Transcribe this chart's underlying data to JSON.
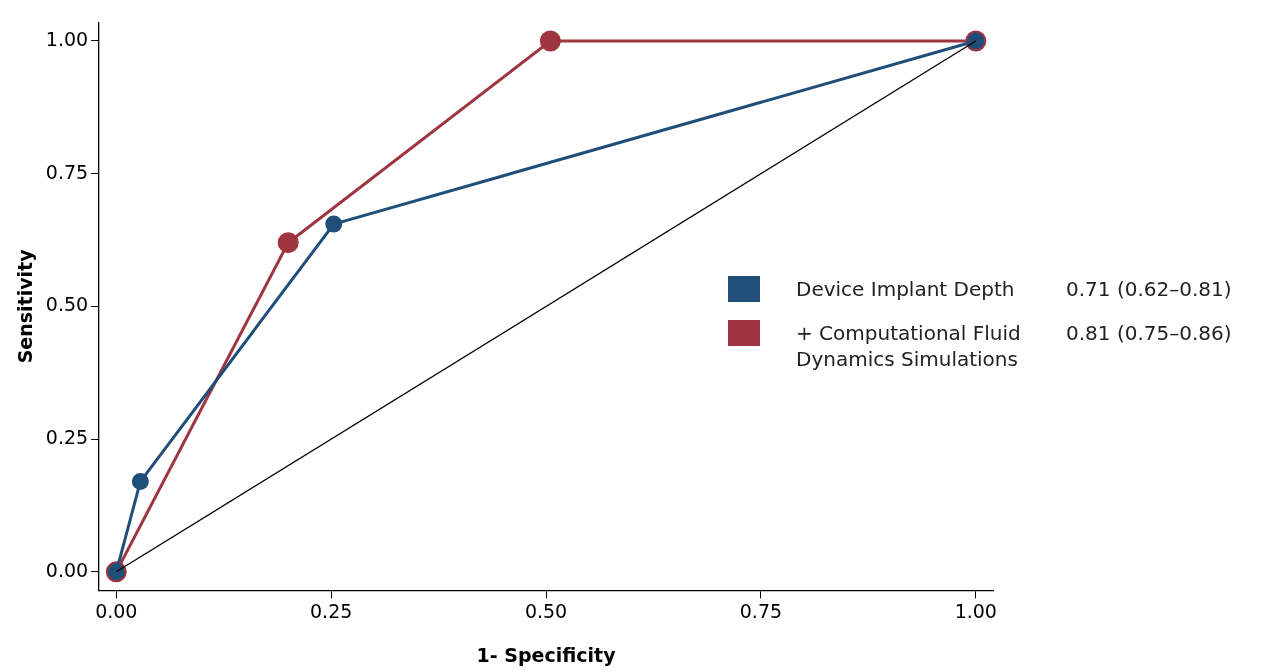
{
  "chart_data": {
    "type": "line",
    "xlabel": "1- Specificity",
    "ylabel": "Sensitivity",
    "xlim": [
      -0.02,
      1.02
    ],
    "ylim": [
      -0.035,
      1.035
    ],
    "xticks": [
      {
        "value": 0,
        "label": "0.00"
      },
      {
        "value": 0.25,
        "label": "0.25"
      },
      {
        "value": 0.5,
        "label": "0.50"
      },
      {
        "value": 0.75,
        "label": "0.75"
      },
      {
        "value": 1,
        "label": "1.00"
      }
    ],
    "yticks": [
      {
        "value": 0,
        "label": "0.00"
      },
      {
        "value": 0.25,
        "label": "0.25"
      },
      {
        "value": 0.5,
        "label": "0.50"
      },
      {
        "value": 0.75,
        "label": "0.75"
      },
      {
        "value": 1,
        "label": "1.00"
      }
    ],
    "grid": false,
    "legend": "right",
    "marker": "circle",
    "line_style": "solid",
    "series": [
      {
        "name": "Device Implant Depth",
        "color": "#1f4e79",
        "x": [
          0,
          0.028,
          0.253,
          1
        ],
        "values": [
          0,
          0.17,
          0.655,
          1
        ]
      },
      {
        "name": "+ Computational Fluid Dynamics Simulations",
        "color": "#9e3540",
        "x": [
          0,
          0.2,
          0.505,
          1
        ],
        "values": [
          0,
          0.62,
          1,
          1
        ]
      },
      {
        "color": "#000000",
        "marker": "none",
        "x": [
          0,
          1
        ],
        "values": [
          0,
          1
        ]
      }
    ],
    "annotations": [
      "0.71 (0.62–0.81)",
      "0.81 (0.75–0.86)"
    ]
  }
}
